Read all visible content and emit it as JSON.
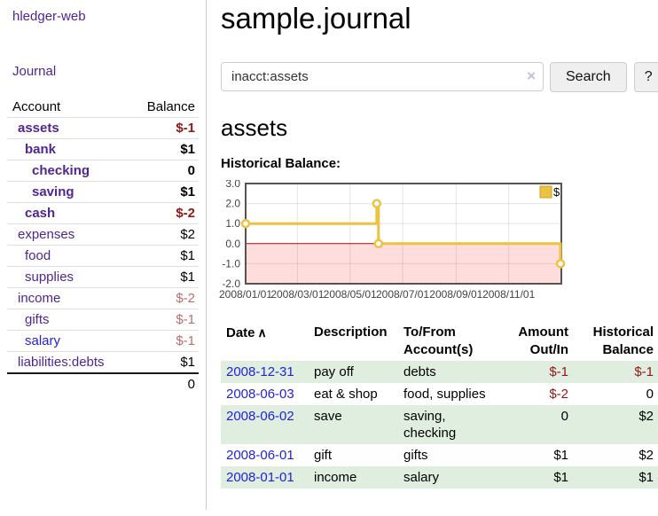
{
  "app": {
    "brand": "hledger-web",
    "nav_journal_label": "Journal"
  },
  "colors": {
    "link_purple": "#4f2696",
    "link_blue": "#2222dd",
    "negative_strong": "#951515",
    "negative_pale": "#b96c6c",
    "row_stripe_green": "#e0eee0",
    "chart_line_gold": "#edc240",
    "chart_negative_region": "#ffdddd",
    "chart_zero_line": "#bb0000"
  },
  "sidebar": {
    "columns": {
      "account": "Account",
      "balance": "Balance"
    },
    "accounts": [
      {
        "name": "assets",
        "depth": 1,
        "bold": true,
        "balance": "$-1",
        "balance_style": "neg"
      },
      {
        "name": "bank",
        "depth": 2,
        "bold": true,
        "balance": "$1",
        "balance_style": "normal"
      },
      {
        "name": "checking",
        "depth": 3,
        "bold": true,
        "balance": "0",
        "balance_style": "normal"
      },
      {
        "name": "saving",
        "depth": 3,
        "bold": true,
        "balance": "$1",
        "balance_style": "normal"
      },
      {
        "name": "cash",
        "depth": 2,
        "bold": true,
        "balance": "$-2",
        "balance_style": "neg"
      },
      {
        "name": "expenses",
        "depth": 1,
        "bold": false,
        "balance": "$2",
        "balance_style": "normal"
      },
      {
        "name": "food",
        "depth": 2,
        "bold": false,
        "balance": "$1",
        "balance_style": "normal"
      },
      {
        "name": "supplies",
        "depth": 2,
        "bold": false,
        "balance": "$1",
        "balance_style": "normal"
      },
      {
        "name": "income",
        "depth": 1,
        "bold": false,
        "balance": "$-2",
        "balance_style": "neg-pale"
      },
      {
        "name": "gifts",
        "depth": 2,
        "bold": false,
        "balance": "$-1",
        "balance_style": "neg-pale"
      },
      {
        "name": "salary",
        "depth": 2,
        "bold": false,
        "balance": "$-1",
        "balance_style": "neg-pale",
        "link_color": "blue"
      },
      {
        "name": "liabilities:debts",
        "depth": 1,
        "bold": false,
        "balance": "$1",
        "balance_style": "normal"
      }
    ],
    "total": "0"
  },
  "main": {
    "title": "sample.journal",
    "account_heading": "assets",
    "chart_label": "Historical Balance:"
  },
  "search": {
    "query": "inacct:assets",
    "clear_icon": "×",
    "button_label": "Search",
    "help_label": "?"
  },
  "chart_data": {
    "type": "line",
    "step": true,
    "title": "Historical Balance: assets",
    "legend": [
      {
        "label": "$",
        "color": "#edc240"
      }
    ],
    "legend_position": "top-right",
    "grid": true,
    "ylim": [
      -2,
      3
    ],
    "y_ticks": [
      3.0,
      2.0,
      1.0,
      0.0,
      -1.0,
      -2.0
    ],
    "x_range_days": [
      0,
      366
    ],
    "x_ticks": [
      {
        "label": "2008/01/01",
        "day": 0
      },
      {
        "label": "2008/03/01",
        "day": 60
      },
      {
        "label": "2008/05/01",
        "day": 121
      },
      {
        "label": "2008/07/01",
        "day": 182
      },
      {
        "label": "2008/09/01",
        "day": 244
      },
      {
        "label": "2008/11/01",
        "day": 305
      }
    ],
    "series": [
      {
        "name": "$",
        "color": "#edc240",
        "points": [
          {
            "date": "2008-01-01",
            "day": 0,
            "value": 1
          },
          {
            "date": "2008-06-01",
            "day": 152,
            "value": 2
          },
          {
            "date": "2008-06-03",
            "day": 154,
            "value": 0
          },
          {
            "date": "2008-12-31",
            "day": 365,
            "value": -1
          }
        ]
      }
    ],
    "negative_region_color": "#ffdddd",
    "zero_line_color": "#bb0000"
  },
  "register": {
    "columns": {
      "date": "Date",
      "sort_icon": "∧",
      "description": "Description",
      "accounts": "To/From Account(s)",
      "amount": "Amount Out/In",
      "balance": "Historical Balance"
    },
    "rows": [
      {
        "date": "2008-12-31",
        "description": "pay off",
        "accounts": "debts",
        "amount": "$-1",
        "amount_neg": true,
        "balance": "$-1",
        "balance_neg": true
      },
      {
        "date": "2008-06-03",
        "description": "eat & shop",
        "accounts": "food, supplies",
        "amount": "$-2",
        "amount_neg": true,
        "balance": "0",
        "balance_neg": false
      },
      {
        "date": "2008-06-02",
        "description": "save",
        "accounts": "saving, checking",
        "amount": "0",
        "amount_neg": false,
        "balance": "$2",
        "balance_neg": false
      },
      {
        "date": "2008-06-01",
        "description": "gift",
        "accounts": "gifts",
        "amount": "$1",
        "amount_neg": false,
        "balance": "$2",
        "balance_neg": false
      },
      {
        "date": "2008-01-01",
        "description": "income",
        "accounts": "salary",
        "amount": "$1",
        "amount_neg": false,
        "balance": "$1",
        "balance_neg": false
      }
    ]
  }
}
